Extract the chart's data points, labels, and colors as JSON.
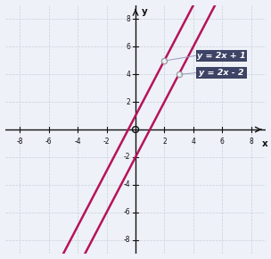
{
  "xlim": [
    -9,
    9
  ],
  "ylim": [
    -9,
    9
  ],
  "xticks": [
    -8,
    -6,
    -4,
    -2,
    2,
    4,
    6,
    8
  ],
  "yticks": [
    -8,
    -6,
    -4,
    -2,
    2,
    4,
    6,
    8
  ],
  "line1_slope": 2,
  "line1_intercept": 1,
  "line1_label": "y = 2x + 1",
  "line2_slope": 2,
  "line2_intercept": -2,
  "line2_label": "y = 2x - 2",
  "line_color": "#b5135b",
  "line_width": 1.8,
  "annotation_bg_color": "#3d4466",
  "annotation_text_color": "#ffffff",
  "ann1_point": [
    2.0,
    5.0
  ],
  "ann2_point": [
    3.0,
    4.0
  ],
  "grid_color": "#c8d0de",
  "axis_color": "#111111",
  "background_color": "#eef1f7",
  "xlabel": "x",
  "ylabel": "y",
  "figsize": [
    3.04,
    2.9
  ],
  "dpi": 100
}
